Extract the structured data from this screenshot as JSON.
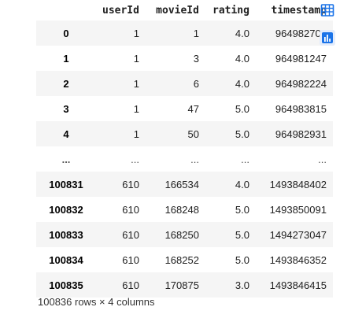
{
  "dataframe": {
    "columns": [
      "userId",
      "movieId",
      "rating",
      "timestamp"
    ],
    "rows": [
      {
        "index": "0",
        "userId": "1",
        "movieId": "1",
        "rating": "4.0",
        "timestamp": "964982703"
      },
      {
        "index": "1",
        "userId": "1",
        "movieId": "3",
        "rating": "4.0",
        "timestamp": "964981247"
      },
      {
        "index": "2",
        "userId": "1",
        "movieId": "6",
        "rating": "4.0",
        "timestamp": "964982224"
      },
      {
        "index": "3",
        "userId": "1",
        "movieId": "47",
        "rating": "5.0",
        "timestamp": "964983815"
      },
      {
        "index": "4",
        "userId": "1",
        "movieId": "50",
        "rating": "5.0",
        "timestamp": "964982931"
      },
      {
        "index": "...",
        "userId": "...",
        "movieId": "...",
        "rating": "...",
        "timestamp": "..."
      },
      {
        "index": "100831",
        "userId": "610",
        "movieId": "166534",
        "rating": "4.0",
        "timestamp": "1493848402"
      },
      {
        "index": "100832",
        "userId": "610",
        "movieId": "168248",
        "rating": "5.0",
        "timestamp": "1493850091"
      },
      {
        "index": "100833",
        "userId": "610",
        "movieId": "168250",
        "rating": "5.0",
        "timestamp": "1494273047"
      },
      {
        "index": "100834",
        "userId": "610",
        "movieId": "168252",
        "rating": "5.0",
        "timestamp": "1493846352"
      },
      {
        "index": "100835",
        "userId": "610",
        "movieId": "170875",
        "rating": "3.0",
        "timestamp": "1493846415"
      }
    ],
    "shape_text": "100836 rows × 4 columns"
  },
  "toolbar": {
    "table_button_icon": "table-icon",
    "chart_button_icon": "bar-chart-icon"
  },
  "colors": {
    "accent": "#1a73e8",
    "accent_bg": "#e3ecfb",
    "stripe": "#f5f5f5"
  }
}
